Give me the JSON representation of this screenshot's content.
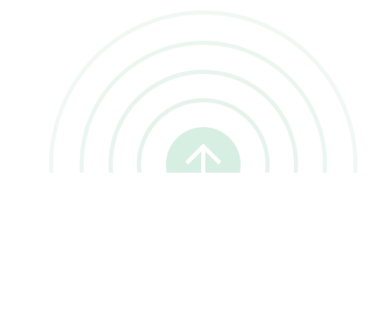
{
  "upload_visual": {
    "icon": "arrow-up-icon",
    "colors": {
      "ring": "#eaf5ef",
      "ring_outer": "#f0f8f3",
      "circle": "#d7eee3",
      "arrow": "#ffffff"
    }
  }
}
